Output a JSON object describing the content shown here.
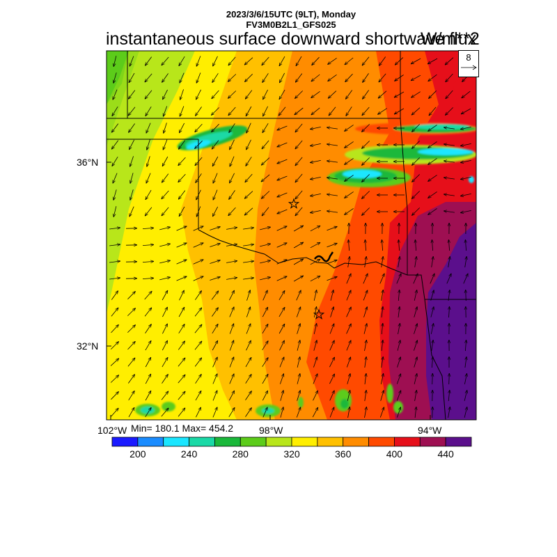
{
  "header": {
    "datetime": "2023/3/6/15UTC (9LT), Monday",
    "model": "FV3M0B2L1_GFS025",
    "title": "instantaneous surface downward shortwave flux",
    "units": "W/m**2"
  },
  "axes": {
    "lat_labels": [
      "36°N",
      "32°N"
    ],
    "lon_labels": [
      "102°W",
      "98°W",
      "94°W"
    ]
  },
  "stats": "Min= 180.1 Max= 454.2",
  "reference_vector": {
    "value": "8"
  },
  "colorbar": {
    "colors": [
      "#1a1aff",
      "#1a8cff",
      "#1ae6ff",
      "#1ad9a6",
      "#1ab83a",
      "#5ccc1a",
      "#b8e61a",
      "#ffee00",
      "#ffc000",
      "#ff8c00",
      "#ff4a00",
      "#e60f1a",
      "#9e0f52",
      "#5b0f8c"
    ],
    "labels": [
      "200",
      "240",
      "280",
      "320",
      "360",
      "400",
      "440"
    ]
  },
  "map_features": {
    "stars": [
      "star-marker-north",
      "star-marker-south"
    ]
  }
}
